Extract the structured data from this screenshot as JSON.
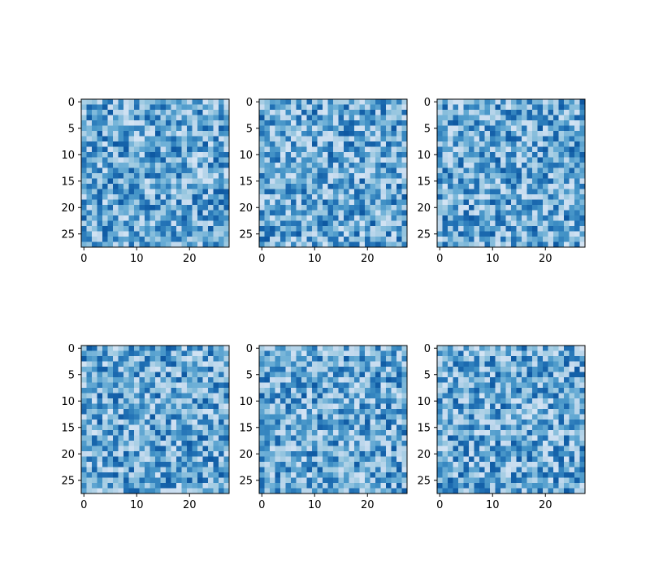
{
  "figure": {
    "layout": "2 rows x 3 columns of heatmap subplots",
    "colormap": "Blues",
    "colormap_stops": [
      "#f7fbff",
      "#deebf7",
      "#c6dbef",
      "#9ecae1",
      "#6baed6",
      "#4292c6",
      "#2171b5",
      "#08519c",
      "#08306b"
    ],
    "value_range_shown": [
      0.18,
      0.85
    ]
  },
  "chart_data": [
    {
      "type": "heatmap",
      "panel": "top-left",
      "rows": 28,
      "cols": 28,
      "seed": 11,
      "xticks": [
        0,
        10,
        20
      ],
      "yticks": [
        0,
        5,
        10,
        15,
        20,
        25
      ],
      "xlim": [
        -0.5,
        27.5
      ],
      "ylim": [
        27.5,
        -0.5
      ],
      "grid": false
    },
    {
      "type": "heatmap",
      "panel": "top-middle",
      "rows": 28,
      "cols": 28,
      "seed": 23,
      "xticks": [
        0,
        10,
        20
      ],
      "yticks": [
        0,
        5,
        10,
        15,
        20,
        25
      ],
      "xlim": [
        -0.5,
        27.5
      ],
      "ylim": [
        27.5,
        -0.5
      ],
      "grid": false
    },
    {
      "type": "heatmap",
      "panel": "top-right",
      "rows": 28,
      "cols": 28,
      "seed": 37,
      "xticks": [
        0,
        10,
        20
      ],
      "yticks": [
        0,
        5,
        10,
        15,
        20,
        25
      ],
      "xlim": [
        -0.5,
        27.5
      ],
      "ylim": [
        27.5,
        -0.5
      ],
      "grid": false
    },
    {
      "type": "heatmap",
      "panel": "bottom-left",
      "rows": 28,
      "cols": 28,
      "seed": 41,
      "xticks": [
        0,
        10,
        20
      ],
      "yticks": [
        0,
        5,
        10,
        15,
        20,
        25
      ],
      "xlim": [
        -0.5,
        27.5
      ],
      "ylim": [
        27.5,
        -0.5
      ],
      "grid": false
    },
    {
      "type": "heatmap",
      "panel": "bottom-middle",
      "rows": 28,
      "cols": 28,
      "seed": 53,
      "xticks": [
        0,
        10,
        20
      ],
      "yticks": [
        0,
        5,
        10,
        15,
        20,
        25
      ],
      "xlim": [
        -0.5,
        27.5
      ],
      "ylim": [
        27.5,
        -0.5
      ],
      "grid": false
    },
    {
      "type": "heatmap",
      "panel": "bottom-right",
      "rows": 28,
      "cols": 28,
      "seed": 67,
      "xticks": [
        0,
        10,
        20
      ],
      "yticks": [
        0,
        5,
        10,
        15,
        20,
        25
      ],
      "xlim": [
        -0.5,
        27.5
      ],
      "ylim": [
        27.5,
        -0.5
      ],
      "grid": false
    }
  ]
}
